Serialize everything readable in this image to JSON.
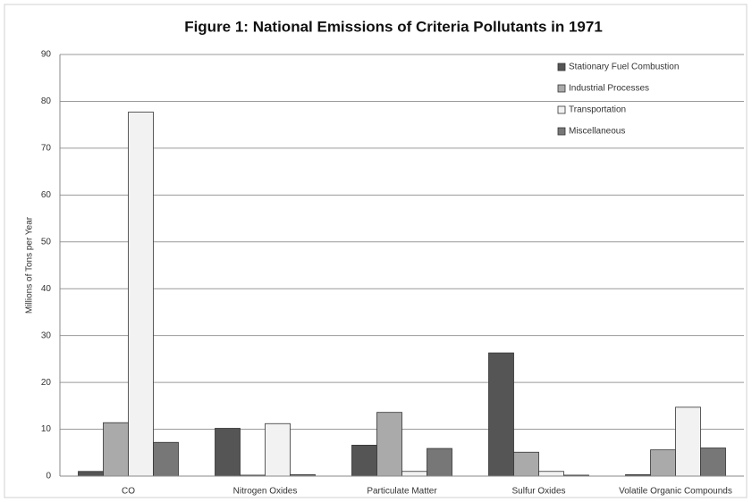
{
  "chart_data": {
    "type": "bar",
    "title": "Figure 1: National Emissions of Criteria Pollutants in 1971",
    "y_label": "Millions of Tons per Year",
    "categories": [
      "CO",
      "Nitrogen Oxides",
      "Particulate Matter",
      "Sulfur Oxides",
      "Volatile Organic Compounds"
    ],
    "series": [
      {
        "name": "Stationary Fuel Combustion",
        "color": "#555555",
        "values": [
          1.0,
          10.2,
          6.6,
          26.3,
          0.3
        ]
      },
      {
        "name": "Industrial Processes",
        "color": "#aaaaaa",
        "values": [
          11.4,
          0.2,
          13.6,
          5.1,
          5.6
        ]
      },
      {
        "name": "Transportation",
        "color": "#f2f2f2",
        "values": [
          77.7,
          11.2,
          1.0,
          1.0,
          14.7
        ]
      },
      {
        "name": "Miscellaneous",
        "color": "#777777",
        "values": [
          7.2,
          0.3,
          5.9,
          0.2,
          6.0
        ]
      }
    ],
    "ylim": [
      0,
      90
    ],
    "yticks": [
      0,
      10,
      20,
      30,
      40,
      50,
      60,
      70,
      80,
      90
    ],
    "grid": true,
    "legend": "top-right"
  }
}
